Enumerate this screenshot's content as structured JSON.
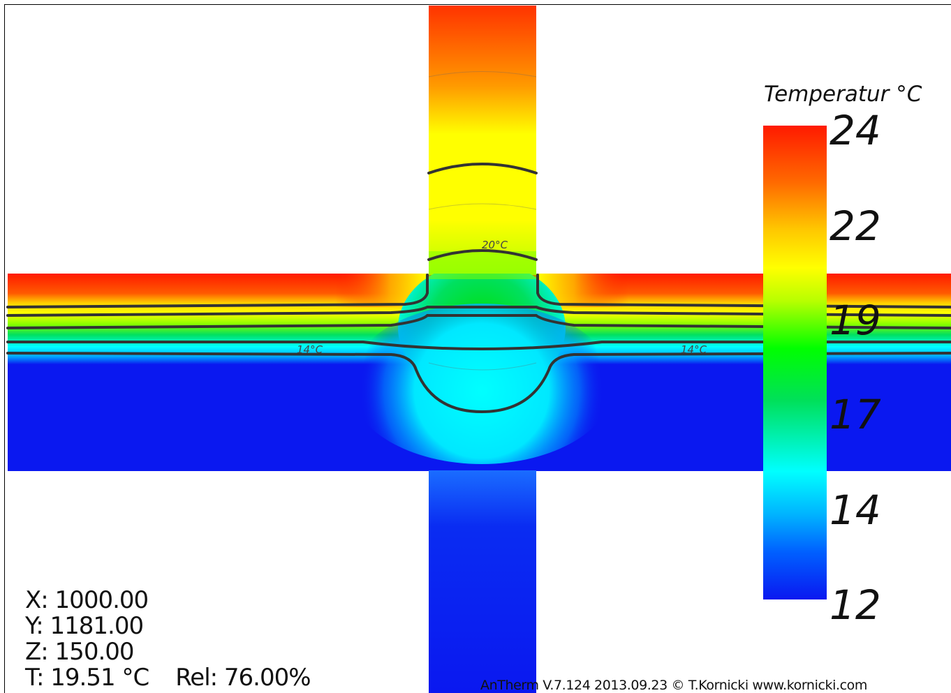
{
  "legend": {
    "title": "Temperatur °C",
    "ticks": [
      "24",
      "22",
      "19",
      "17",
      "14",
      "12"
    ]
  },
  "isolines": {
    "label_20": "20°C",
    "label_14_left": "14°C",
    "label_14_right": "14°C"
  },
  "readout": {
    "x": "X: 1000.00",
    "y": "Y: 1181.00",
    "z": "Z: 150.00",
    "t": "T: 19.51 °C",
    "rel": "Rel: 76.00%"
  },
  "footer": "AnTherm V.7.124 2013.09.23 © T.Kornicki www.kornicki.com",
  "colors": {
    "hot": "#ff1a00",
    "warm": "#ffff00",
    "mid": "#00e000",
    "cool": "#00ffff",
    "cold": "#0a18f0"
  }
}
